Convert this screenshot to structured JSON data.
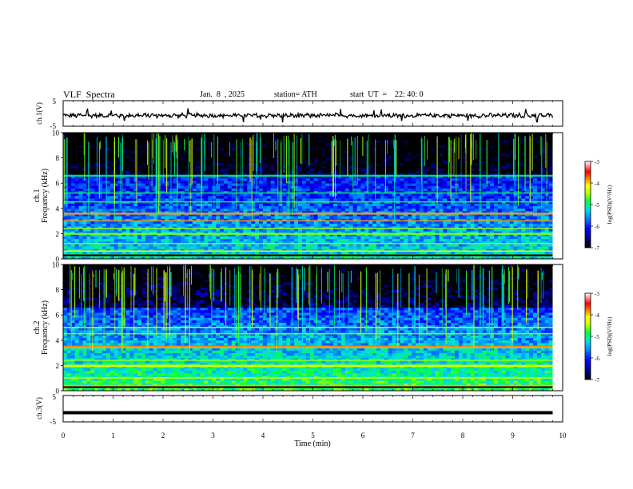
{
  "header": {
    "title": "VLF  Spectra",
    "date": "Jan.  8  , 2025",
    "station": "station= ATH",
    "start": "start  UT  =    22: 40: 0"
  },
  "chart_data": [
    {
      "type": "line",
      "ylabel": "ch.1(V)",
      "ylim": [
        -5,
        5
      ],
      "yticks": [
        "5",
        "-5"
      ],
      "baseline": -0.8,
      "note": "wideband waveform amplitude, noisy around ~-1 V",
      "xlim": [
        0,
        10
      ],
      "x_end": 9.8
    },
    {
      "type": "heatmap",
      "ylabel_top": "ch.1",
      "ylabel": "Frequency  (kHz)",
      "ylim": [
        0,
        10
      ],
      "yticks": [
        "0",
        "2",
        "4",
        "6",
        "8",
        "10"
      ],
      "xlim": [
        0,
        10
      ],
      "x_end": 9.8,
      "colorbar": {
        "label": "log(PSD)(V²/Hz)",
        "ticks": [
          "-3",
          "-4",
          "-5",
          "-6",
          "-7"
        ],
        "range": [
          -7,
          -3
        ]
      },
      "bands_kHz": [
        0.3,
        0.6,
        1.2,
        2.0,
        2.4,
        3.0,
        3.6,
        4.5,
        5.2,
        6.6
      ],
      "dominant_level_low": -5.2,
      "dominant_level_high": -6.6
    },
    {
      "type": "heatmap",
      "ylabel_top": "ch.2",
      "ylabel": "Frequency  (kHz)",
      "ylim": [
        0,
        10
      ],
      "yticks": [
        "0",
        "2",
        "4",
        "6",
        "8",
        "10"
      ],
      "xlim": [
        0,
        10
      ],
      "x_end": 9.8,
      "colorbar": {
        "label": "log(PSD)(V²/Hz)",
        "ticks": [
          "-3",
          "-4",
          "-5",
          "-6",
          "-7"
        ],
        "range": [
          -7,
          -3
        ]
      },
      "bands_kHz": [
        0.4,
        1.0,
        1.9,
        2.0,
        2.4,
        3.4,
        3.5,
        4.5,
        5.0
      ],
      "dominant_level_low": -4.8,
      "dominant_level_high": -6.5
    },
    {
      "type": "line",
      "ylabel": "ch.3(V)",
      "ylim": [
        -5,
        5
      ],
      "yticks": [
        "5",
        "-5"
      ],
      "baseline": -1.5,
      "note": "flat thick trace",
      "xlim": [
        0,
        10
      ],
      "x_end": 9.8
    }
  ],
  "xaxis": {
    "label": "Time  (min)",
    "ticks": [
      "0",
      "1",
      "2",
      "3",
      "4",
      "5",
      "6",
      "7",
      "8",
      "9",
      "10"
    ]
  },
  "colors": {
    "colormap": [
      "#000000",
      "#00007a",
      "#0000ff",
      "#0080ff",
      "#00e0e0",
      "#00ff40",
      "#c0ff00",
      "#ffff00",
      "#ff8000",
      "#ff0000",
      "#ffffff"
    ],
    "trace": "#000000"
  }
}
